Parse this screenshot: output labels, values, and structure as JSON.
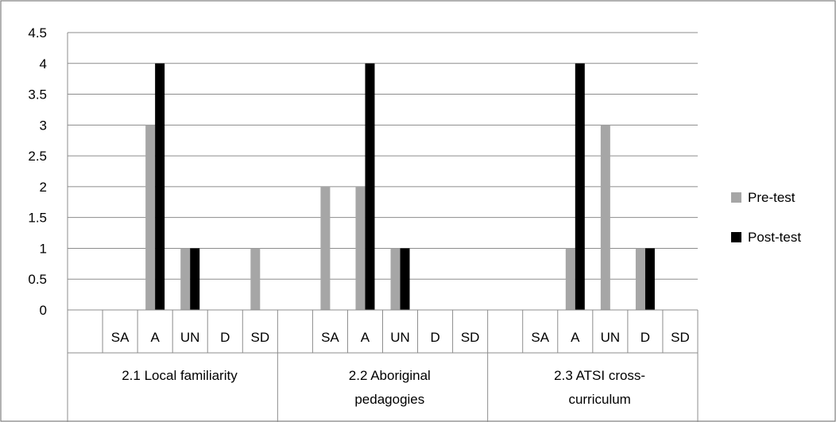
{
  "chart_data": {
    "type": "bar",
    "groups": [
      "2.1 Local familiarity",
      "2.2 Aboriginal pedagogies",
      "2.3 ATSI cross-curriculum"
    ],
    "group_label_lines": [
      [
        "2.1 Local familiarity"
      ],
      [
        "2.2 Aboriginal",
        "pedagogies"
      ],
      [
        "2.3 ATSI cross-",
        "curriculum"
      ]
    ],
    "categories": [
      "",
      "SA",
      "A",
      "UN",
      "D",
      "SD"
    ],
    "series": [
      {
        "name": "Pre-test",
        "color": "#a6a6a6",
        "values": [
          [
            0,
            0,
            3,
            1,
            0,
            1
          ],
          [
            0,
            2,
            2,
            1,
            0,
            0
          ],
          [
            0,
            0,
            1,
            3,
            1,
            0
          ]
        ]
      },
      {
        "name": "Post-test",
        "color": "#000000",
        "values": [
          [
            0,
            0,
            4,
            1,
            0,
            0
          ],
          [
            0,
            0,
            4,
            1,
            0,
            0
          ],
          [
            0,
            0,
            4,
            0,
            1,
            0
          ]
        ]
      }
    ],
    "ylim": [
      0,
      4.5
    ],
    "yticks": [
      "0",
      "0.5",
      "1",
      "1.5",
      "2",
      "2.5",
      "3",
      "3.5",
      "4",
      "4.5"
    ],
    "grid": true,
    "legend_position": "right"
  }
}
